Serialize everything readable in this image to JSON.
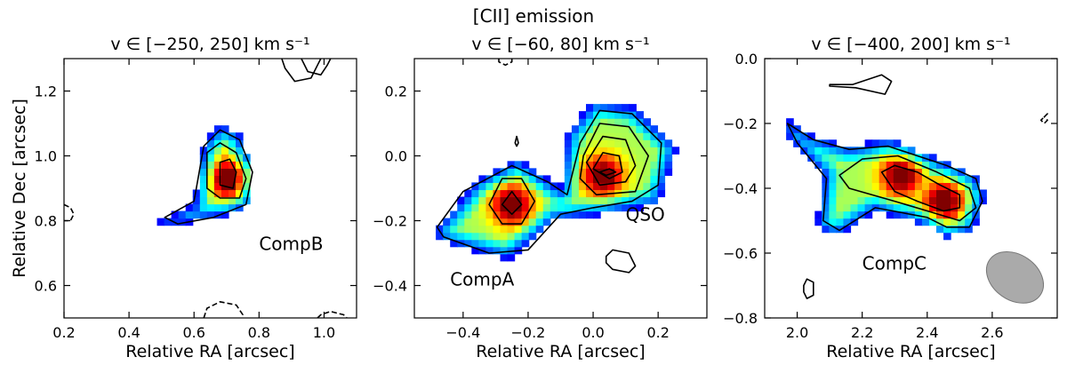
{
  "figure": {
    "suptitle": "[CII] emission"
  },
  "chart_data": [
    {
      "type": "heatmap",
      "title": "v ∈ [−250, 250] km s⁻¹",
      "xlabel": "Relative RA [arcsec]",
      "ylabel": "Relative Dec [arcsec]",
      "xlim": [
        0.2,
        1.1
      ],
      "ylim": [
        0.5,
        1.3
      ],
      "xticks": [
        0.2,
        0.4,
        0.6,
        0.8,
        1.0
      ],
      "xtick_labels": [
        "0.2",
        "0.4",
        "0.6",
        "0.8",
        "1.0"
      ],
      "yticks": [
        0.6,
        0.8,
        1.0,
        1.2
      ],
      "ytick_labels": [
        "0.6",
        "0.8",
        "1.0",
        "1.2"
      ],
      "pixel_size": 0.022,
      "peak": [
        0.71,
        0.93
      ],
      "emission_shape": [
        [
          0.48,
          0.79
        ],
        [
          0.6,
          0.85
        ],
        [
          0.63,
          1.04
        ],
        [
          0.68,
          1.1
        ],
        [
          0.74,
          1.07
        ],
        [
          0.78,
          0.96
        ],
        [
          0.77,
          0.85
        ],
        [
          0.7,
          0.82
        ],
        [
          0.56,
          0.79
        ]
      ],
      "annotations": [
        {
          "text": "CompB",
          "x": 0.8,
          "y": 0.71
        }
      ],
      "contours_solid": [
        [
          [
            0.51,
            0.81
          ],
          [
            0.6,
            0.86
          ],
          [
            0.63,
            1.03
          ],
          [
            0.68,
            1.08
          ],
          [
            0.74,
            1.05
          ],
          [
            0.78,
            0.95
          ],
          [
            0.76,
            0.85
          ],
          [
            0.66,
            0.81
          ],
          [
            0.55,
            0.79
          ]
        ],
        [
          [
            0.64,
            0.9
          ],
          [
            0.64,
            1.01
          ],
          [
            0.68,
            1.04
          ],
          [
            0.73,
            1.01
          ],
          [
            0.76,
            0.93
          ],
          [
            0.74,
            0.87
          ],
          [
            0.68,
            0.87
          ]
        ],
        [
          [
            0.68,
            0.91
          ],
          [
            0.68,
            0.98
          ],
          [
            0.71,
            0.99
          ],
          [
            0.73,
            0.95
          ],
          [
            0.72,
            0.9
          ]
        ],
        [
          [
            0.93,
            1.3
          ],
          [
            0.95,
            1.26
          ],
          [
            0.99,
            1.25
          ],
          [
            1.01,
            1.28
          ],
          [
            1.02,
            1.3
          ]
        ],
        [
          [
            0.87,
            1.3
          ],
          [
            0.88,
            1.27
          ],
          [
            0.91,
            1.23
          ],
          [
            0.96,
            1.24
          ],
          [
            0.98,
            1.28
          ],
          [
            0.99,
            1.3
          ]
        ]
      ],
      "contours_dashed": [
        [
          [
            0.63,
            0.5
          ],
          [
            0.64,
            0.53
          ],
          [
            0.68,
            0.55
          ],
          [
            0.73,
            0.54
          ],
          [
            0.75,
            0.51
          ],
          [
            0.75,
            0.5
          ]
        ],
        [
          [
            0.98,
            0.5
          ],
          [
            0.99,
            0.51
          ],
          [
            1.02,
            0.52
          ],
          [
            1.06,
            0.51
          ],
          [
            1.07,
            0.5
          ]
        ],
        [
          [
            0.2,
            0.85
          ],
          [
            0.22,
            0.84
          ],
          [
            0.23,
            0.82
          ],
          [
            0.22,
            0.8
          ],
          [
            0.2,
            0.8
          ]
        ]
      ]
    },
    {
      "type": "heatmap",
      "title": "v ∈ [−60, 80] km s⁻¹",
      "xlabel": "Relative RA [arcsec]",
      "ylabel": "",
      "xlim": [
        -0.55,
        0.35
      ],
      "ylim": [
        -0.5,
        0.3
      ],
      "xticks": [
        -0.4,
        -0.2,
        0.0,
        0.2
      ],
      "xtick_labels": [
        "−0.4",
        "−0.2",
        "0.0",
        "0.2"
      ],
      "yticks": [
        -0.4,
        -0.2,
        0.0,
        0.2
      ],
      "ytick_labels": [
        "−0.4",
        "−0.2",
        "0.0",
        "0.2"
      ],
      "pixel_size": 0.022,
      "peaks": [
        [
          0.03,
          -0.06
        ],
        [
          -0.25,
          -0.15
        ]
      ],
      "emission_shape": [
        [
          -0.48,
          -0.22
        ],
        [
          -0.36,
          -0.08
        ],
        [
          -0.23,
          -0.01
        ],
        [
          -0.1,
          -0.1
        ],
        [
          -0.08,
          0.07
        ],
        [
          0.0,
          0.17
        ],
        [
          0.13,
          0.15
        ],
        [
          0.26,
          0.03
        ],
        [
          0.2,
          -0.15
        ],
        [
          0.02,
          -0.18
        ],
        [
          -0.12,
          -0.2
        ],
        [
          -0.26,
          -0.32
        ],
        [
          -0.48,
          -0.26
        ]
      ],
      "annotations": [
        {
          "text": "QSO",
          "x": 0.1,
          "y": -0.2
        },
        {
          "text": "CompA",
          "x": -0.44,
          "y": -0.4
        }
      ],
      "contours_solid": [
        [
          [
            -0.48,
            -0.22
          ],
          [
            -0.4,
            -0.11
          ],
          [
            -0.25,
            -0.03
          ],
          [
            -0.14,
            -0.08
          ],
          [
            -0.08,
            -0.12
          ],
          [
            -0.04,
            0.04
          ],
          [
            0.02,
            0.14
          ],
          [
            0.12,
            0.13
          ],
          [
            0.21,
            0.04
          ],
          [
            0.2,
            -0.09
          ],
          [
            0.12,
            -0.14
          ],
          [
            0.0,
            -0.16
          ],
          [
            -0.1,
            -0.18
          ],
          [
            -0.2,
            -0.29
          ],
          [
            -0.32,
            -0.3
          ],
          [
            -0.46,
            -0.25
          ]
        ],
        [
          [
            -0.03,
            0.0
          ],
          [
            0.02,
            0.1
          ],
          [
            0.11,
            0.09
          ],
          [
            0.17,
            0.0
          ],
          [
            0.13,
            -0.11
          ],
          [
            0.01,
            -0.12
          ],
          [
            -0.04,
            -0.07
          ]
        ],
        [
          [
            -0.02,
            -0.02
          ],
          [
            0.03,
            0.06
          ],
          [
            0.1,
            0.05
          ],
          [
            0.13,
            -0.03
          ],
          [
            0.1,
            -0.08
          ],
          [
            0.02,
            -0.09
          ]
        ],
        [
          [
            0.0,
            -0.04
          ],
          [
            0.03,
            0.01
          ],
          [
            0.08,
            0.0
          ],
          [
            0.09,
            -0.05
          ],
          [
            0.05,
            -0.07
          ]
        ],
        [
          [
            0.02,
            -0.05
          ],
          [
            0.05,
            -0.04
          ],
          [
            0.07,
            -0.05
          ],
          [
            0.04,
            -0.06
          ]
        ],
        [
          [
            -0.32,
            -0.15
          ],
          [
            -0.28,
            -0.07
          ],
          [
            -0.22,
            -0.07
          ],
          [
            -0.18,
            -0.14
          ],
          [
            -0.22,
            -0.21
          ],
          [
            -0.28,
            -0.21
          ]
        ],
        [
          [
            -0.28,
            -0.15
          ],
          [
            -0.25,
            -0.11
          ],
          [
            -0.22,
            -0.15
          ],
          [
            -0.25,
            -0.18
          ]
        ],
        [
          [
            -0.24,
            0.04
          ],
          [
            -0.235,
            0.06
          ],
          [
            -0.23,
            0.04
          ],
          [
            -0.235,
            0.03
          ]
        ],
        [
          [
            0.04,
            -0.31
          ],
          [
            0.06,
            -0.29
          ],
          [
            0.11,
            -0.3
          ],
          [
            0.13,
            -0.34
          ],
          [
            0.11,
            -0.36
          ],
          [
            0.06,
            -0.35
          ],
          [
            0.04,
            -0.33
          ]
        ]
      ],
      "contours_dashed": [
        [
          [
            -0.29,
            0.3
          ],
          [
            -0.29,
            0.29
          ],
          [
            -0.27,
            0.28
          ],
          [
            -0.25,
            0.29
          ],
          [
            -0.25,
            0.3
          ]
        ]
      ]
    },
    {
      "type": "heatmap",
      "title": "v ∈ [−400, 200] km s⁻¹",
      "xlabel": "Relative RA [arcsec]",
      "ylabel": "",
      "xlim": [
        1.9,
        2.8
      ],
      "ylim": [
        -0.8,
        0.0
      ],
      "xticks": [
        2.0,
        2.2,
        2.4,
        2.6
      ],
      "xtick_labels": [
        "2.0",
        "2.2",
        "2.4",
        "2.6"
      ],
      "yticks": [
        -0.8,
        -0.6,
        -0.4,
        -0.2,
        0.0
      ],
      "ytick_labels": [
        "−0.8",
        "−0.6",
        "−0.4",
        "−0.2",
        "0.0"
      ],
      "pixel_size": 0.022,
      "peaks": [
        [
          2.32,
          -0.36
        ],
        [
          2.45,
          -0.44
        ]
      ],
      "emission_shape": [
        [
          1.96,
          -0.18
        ],
        [
          2.05,
          -0.24
        ],
        [
          2.16,
          -0.27
        ],
        [
          2.28,
          -0.25
        ],
        [
          2.46,
          -0.32
        ],
        [
          2.55,
          -0.36
        ],
        [
          2.58,
          -0.42
        ],
        [
          2.54,
          -0.53
        ],
        [
          2.46,
          -0.55
        ],
        [
          2.4,
          -0.51
        ],
        [
          2.24,
          -0.47
        ],
        [
          2.12,
          -0.55
        ],
        [
          2.06,
          -0.52
        ],
        [
          2.08,
          -0.36
        ],
        [
          1.97,
          -0.24
        ]
      ],
      "annotations": [
        {
          "text": "CompC",
          "x": 2.2,
          "y": -0.65
        }
      ],
      "beam": {
        "x": 2.67,
        "y": -0.675,
        "major": 0.19,
        "minor": 0.14,
        "angle_deg": 35,
        "color": "#aaaaaa"
      },
      "contours_solid": [
        [
          [
            1.97,
            -0.2
          ],
          [
            2.05,
            -0.25
          ],
          [
            2.16,
            -0.28
          ],
          [
            2.28,
            -0.27
          ],
          [
            2.46,
            -0.33
          ],
          [
            2.55,
            -0.37
          ],
          [
            2.57,
            -0.44
          ],
          [
            2.53,
            -0.52
          ],
          [
            2.46,
            -0.52
          ],
          [
            2.4,
            -0.49
          ],
          [
            2.24,
            -0.46
          ],
          [
            2.13,
            -0.53
          ],
          [
            2.08,
            -0.5
          ],
          [
            2.09,
            -0.37
          ],
          [
            2.0,
            -0.26
          ]
        ],
        [
          [
            2.13,
            -0.36
          ],
          [
            2.2,
            -0.31
          ],
          [
            2.31,
            -0.3
          ],
          [
            2.43,
            -0.35
          ],
          [
            2.53,
            -0.4
          ],
          [
            2.55,
            -0.46
          ],
          [
            2.5,
            -0.5
          ],
          [
            2.4,
            -0.47
          ],
          [
            2.3,
            -0.44
          ],
          [
            2.16,
            -0.4
          ]
        ],
        [
          [
            2.26,
            -0.35
          ],
          [
            2.3,
            -0.33
          ],
          [
            2.37,
            -0.35
          ],
          [
            2.44,
            -0.39
          ],
          [
            2.5,
            -0.42
          ],
          [
            2.5,
            -0.46
          ],
          [
            2.45,
            -0.47
          ],
          [
            2.37,
            -0.44
          ],
          [
            2.3,
            -0.41
          ]
        ],
        [
          [
            2.1,
            -0.08
          ],
          [
            2.17,
            -0.08
          ],
          [
            2.26,
            -0.05
          ],
          [
            2.29,
            -0.07
          ],
          [
            2.27,
            -0.11
          ],
          [
            2.18,
            -0.09
          ],
          [
            2.1,
            -0.085
          ]
        ],
        [
          [
            2.02,
            -0.7
          ],
          [
            2.03,
            -0.68
          ],
          [
            2.05,
            -0.69
          ],
          [
            2.05,
            -0.73
          ],
          [
            2.03,
            -0.74
          ],
          [
            2.02,
            -0.72
          ]
        ]
      ],
      "contours_dashed": [
        [
          [
            2.77,
            -0.17
          ],
          [
            2.76,
            -0.18
          ],
          [
            2.77,
            -0.19
          ],
          [
            2.76,
            -0.2
          ],
          [
            2.75,
            -0.19
          ]
        ]
      ]
    }
  ]
}
